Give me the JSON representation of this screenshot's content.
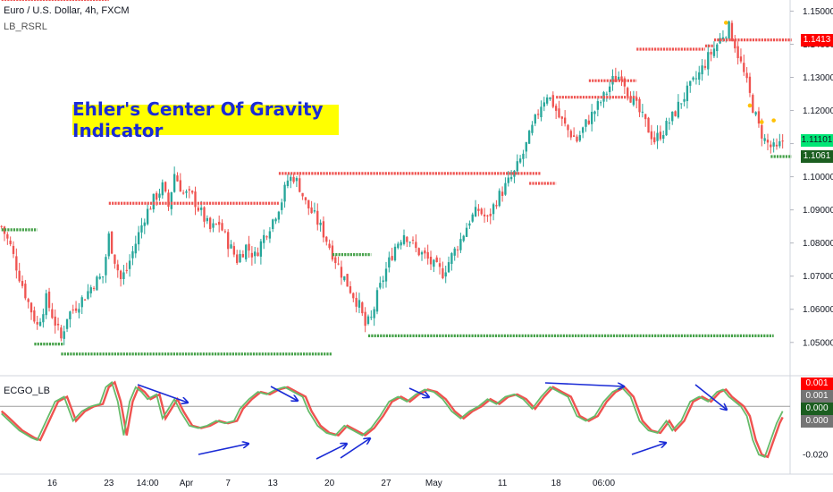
{
  "header": {
    "symbol_line": "Euro / U.S. Dollar, 4h, FXCM",
    "study_name": "LB_RSRL",
    "indicator_name": "ECGO_LB"
  },
  "annotation": {
    "title": "Ehler's Center Of Gravity Indicator"
  },
  "colors": {
    "bull": "#26a69a",
    "bear": "#ef5350",
    "resistance": "#ef5350",
    "support": "#43a047",
    "arrow": "#1a2bd6",
    "cg_line": "#66bb6a",
    "signal_line": "#ef5350",
    "tag_red": "#ff0000",
    "tag_green_light": "#00e676",
    "tag_green_dark": "#1b5e20",
    "tag_gray": "#757575"
  },
  "price_tags": {
    "resistance": "1.1413",
    "current": "1.11101",
    "support": "1.1061"
  },
  "osc_tags": [
    "0.001",
    "0.001",
    "0.000",
    "0.000"
  ],
  "chart_data": [
    {
      "type": "candlestick",
      "title": "Euro / U.S. Dollar, 4h, FXCM",
      "x_ticks": [
        "16",
        "23",
        "14:00",
        "Apr",
        "7",
        "13",
        "20",
        "27",
        "May",
        "11",
        "18",
        "06:00"
      ],
      "y_ticks": [
        "1.15000",
        "1.14000",
        "1.13000",
        "1.12000",
        "1.11000",
        "1.10000",
        "1.09000",
        "1.08000",
        "1.07000",
        "1.06000",
        "1.05000"
      ],
      "ylim": [
        1.044,
        1.152
      ],
      "price_path": [
        [
          0,
          1.085
        ],
        [
          3,
          1.079
        ],
        [
          6,
          1.07
        ],
        [
          9,
          1.062
        ],
        [
          12,
          1.055
        ],
        [
          15,
          1.063
        ],
        [
          18,
          1.056
        ],
        [
          20,
          1.051
        ],
        [
          22,
          1.058
        ],
        [
          25,
          1.061
        ],
        [
          28,
          1.064
        ],
        [
          31,
          1.068
        ],
        [
          34,
          1.07
        ],
        [
          36,
          1.082
        ],
        [
          38,
          1.075
        ],
        [
          40,
          1.069
        ],
        [
          42,
          1.072
        ],
        [
          45,
          1.08
        ],
        [
          48,
          1.088
        ],
        [
          51,
          1.093
        ],
        [
          54,
          1.097
        ],
        [
          56,
          1.091
        ],
        [
          58,
          1.101
        ],
        [
          61,
          1.095
        ],
        [
          64,
          1.094
        ],
        [
          67,
          1.089
        ],
        [
          70,
          1.084
        ],
        [
          73,
          1.086
        ],
        [
          76,
          1.08
        ],
        [
          79,
          1.075
        ],
        [
          82,
          1.079
        ],
        [
          85,
          1.076
        ],
        [
          88,
          1.082
        ],
        [
          91,
          1.087
        ],
        [
          94,
          1.093
        ],
        [
          96,
          1.099
        ],
        [
          98,
          1.1
        ],
        [
          100,
          1.097
        ],
        [
          102,
          1.092
        ],
        [
          105,
          1.088
        ],
        [
          108,
          1.083
        ],
        [
          111,
          1.077
        ],
        [
          114,
          1.071
        ],
        [
          117,
          1.066
        ],
        [
          120,
          1.061
        ],
        [
          122,
          1.055
        ],
        [
          124,
          1.057
        ],
        [
          126,
          1.064
        ],
        [
          129,
          1.072
        ],
        [
          132,
          1.079
        ],
        [
          135,
          1.083
        ],
        [
          137,
          1.081
        ],
        [
          139,
          1.078
        ],
        [
          142,
          1.076
        ],
        [
          145,
          1.073
        ],
        [
          148,
          1.071
        ],
        [
          151,
          1.076
        ],
        [
          154,
          1.081
        ],
        [
          157,
          1.087
        ],
        [
          160,
          1.09
        ],
        [
          163,
          1.087
        ],
        [
          166,
          1.093
        ],
        [
          169,
          1.097
        ],
        [
          172,
          1.101
        ],
        [
          175,
          1.107
        ],
        [
          177,
          1.112
        ],
        [
          179,
          1.117
        ],
        [
          181,
          1.122
        ],
        [
          183,
          1.125
        ],
        [
          185,
          1.122
        ],
        [
          187,
          1.118
        ],
        [
          190,
          1.114
        ],
        [
          193,
          1.111
        ],
        [
          196,
          1.116
        ],
        [
          199,
          1.12
        ],
        [
          202,
          1.124
        ],
        [
          205,
          1.129
        ],
        [
          208,
          1.131
        ],
        [
          210,
          1.126
        ],
        [
          213,
          1.121
        ],
        [
          216,
          1.116
        ],
        [
          219,
          1.111
        ],
        [
          222,
          1.114
        ],
        [
          225,
          1.118
        ],
        [
          228,
          1.123
        ],
        [
          231,
          1.127
        ],
        [
          234,
          1.131
        ],
        [
          237,
          1.136
        ],
        [
          240,
          1.14
        ],
        [
          242,
          1.143
        ],
        [
          244,
          1.145
        ],
        [
          246,
          1.14
        ],
        [
          248,
          1.134
        ],
        [
          250,
          1.128
        ],
        [
          252,
          1.121
        ],
        [
          254,
          1.115
        ],
        [
          256,
          1.111
        ],
        [
          258,
          1.109
        ],
        [
          260,
          1.108
        ],
        [
          262,
          1.111
        ]
      ],
      "last_price": 1.11101,
      "resistance_levels": [
        {
          "start": 0,
          "end": 36,
          "value": 1.1535
        },
        {
          "start": 36,
          "end": 93,
          "value": 1.092
        },
        {
          "start": 93,
          "end": 181,
          "value": 1.101
        },
        {
          "start": 177,
          "end": 186,
          "value": 1.098
        },
        {
          "start": 186,
          "end": 213,
          "value": 1.124
        },
        {
          "start": 197,
          "end": 213,
          "value": 1.129
        },
        {
          "start": 213,
          "end": 236,
          "value": 1.1385
        },
        {
          "start": 236,
          "end": 239,
          "value": 1.1395
        },
        {
          "start": 239,
          "end": 265,
          "value": 1.1413
        }
      ],
      "support_levels": [
        {
          "start": 0,
          "end": 12,
          "value": 1.084
        },
        {
          "start": 11,
          "end": 21,
          "value": 1.0495
        },
        {
          "start": 20,
          "end": 111,
          "value": 1.0465
        },
        {
          "start": 111,
          "end": 124,
          "value": 1.0765
        },
        {
          "start": 123,
          "end": 259,
          "value": 1.052
        },
        {
          "start": 258,
          "end": 265,
          "value": 1.1061
        }
      ]
    },
    {
      "type": "line",
      "title": "ECGO_LB",
      "y_ticks": [
        "-0.020"
      ],
      "ylim": [
        -0.027,
        0.012
      ],
      "series": [],
      "cg_path": [
        [
          0,
          -0.003
        ],
        [
          6,
          -0.01
        ],
        [
          10,
          -0.013
        ],
        [
          12,
          -0.014
        ],
        [
          15,
          -0.006
        ],
        [
          18,
          0.002
        ],
        [
          21,
          0.004
        ],
        [
          24,
          -0.006
        ],
        [
          27,
          -0.002
        ],
        [
          30,
          0.0
        ],
        [
          33,
          0.001
        ],
        [
          35,
          0.008
        ],
        [
          37,
          0.01
        ],
        [
          39,
          0.002
        ],
        [
          41,
          -0.012
        ],
        [
          43,
          0.002
        ],
        [
          45,
          0.008
        ],
        [
          47,
          0.006
        ],
        [
          49,
          0.003
        ],
        [
          52,
          0.005
        ],
        [
          54,
          -0.005
        ],
        [
          56,
          -0.001
        ],
        [
          58,
          0.003
        ],
        [
          60,
          -0.002
        ],
        [
          63,
          -0.008
        ],
        [
          66,
          -0.009
        ],
        [
          69,
          -0.008
        ],
        [
          72,
          -0.006
        ],
        [
          75,
          -0.007
        ],
        [
          78,
          -0.006
        ],
        [
          80,
          -0.001
        ],
        [
          83,
          0.003
        ],
        [
          86,
          0.006
        ],
        [
          89,
          0.005
        ],
        [
          92,
          0.007
        ],
        [
          95,
          0.008
        ],
        [
          98,
          0.006
        ],
        [
          101,
          0.004
        ],
        [
          103,
          -0.002
        ],
        [
          106,
          -0.008
        ],
        [
          109,
          -0.011
        ],
        [
          112,
          -0.012
        ],
        [
          115,
          -0.008
        ],
        [
          118,
          -0.01
        ],
        [
          121,
          -0.012
        ],
        [
          124,
          -0.009
        ],
        [
          127,
          -0.004
        ],
        [
          130,
          0.002
        ],
        [
          133,
          0.004
        ],
        [
          136,
          0.002
        ],
        [
          139,
          0.005
        ],
        [
          142,
          0.007
        ],
        [
          145,
          0.006
        ],
        [
          148,
          0.003
        ],
        [
          151,
          -0.002
        ],
        [
          154,
          -0.005
        ],
        [
          157,
          -0.002
        ],
        [
          160,
          0.0
        ],
        [
          163,
          0.003
        ],
        [
          166,
          0.001
        ],
        [
          169,
          0.004
        ],
        [
          172,
          0.005
        ],
        [
          175,
          0.003
        ],
        [
          178,
          -0.001
        ],
        [
          181,
          0.004
        ],
        [
          184,
          0.008
        ],
        [
          187,
          0.006
        ],
        [
          190,
          0.004
        ],
        [
          193,
          -0.004
        ],
        [
          196,
          -0.006
        ],
        [
          199,
          -0.004
        ],
        [
          202,
          0.002
        ],
        [
          205,
          0.006
        ],
        [
          208,
          0.008
        ],
        [
          211,
          0.004
        ],
        [
          214,
          -0.006
        ],
        [
          217,
          -0.01
        ],
        [
          220,
          -0.011
        ],
        [
          223,
          -0.006
        ],
        [
          225,
          -0.01
        ],
        [
          228,
          -0.006
        ],
        [
          231,
          0.002
        ],
        [
          234,
          0.004
        ],
        [
          237,
          0.002
        ],
        [
          240,
          0.006
        ],
        [
          242,
          0.007
        ],
        [
          244,
          0.004
        ],
        [
          246,
          0.002
        ],
        [
          248,
          0.0
        ],
        [
          250,
          -0.004
        ],
        [
          252,
          -0.014
        ],
        [
          254,
          -0.02
        ],
        [
          256,
          -0.021
        ],
        [
          258,
          -0.014
        ],
        [
          260,
          -0.007
        ],
        [
          262,
          -0.002
        ]
      ]
    }
  ]
}
